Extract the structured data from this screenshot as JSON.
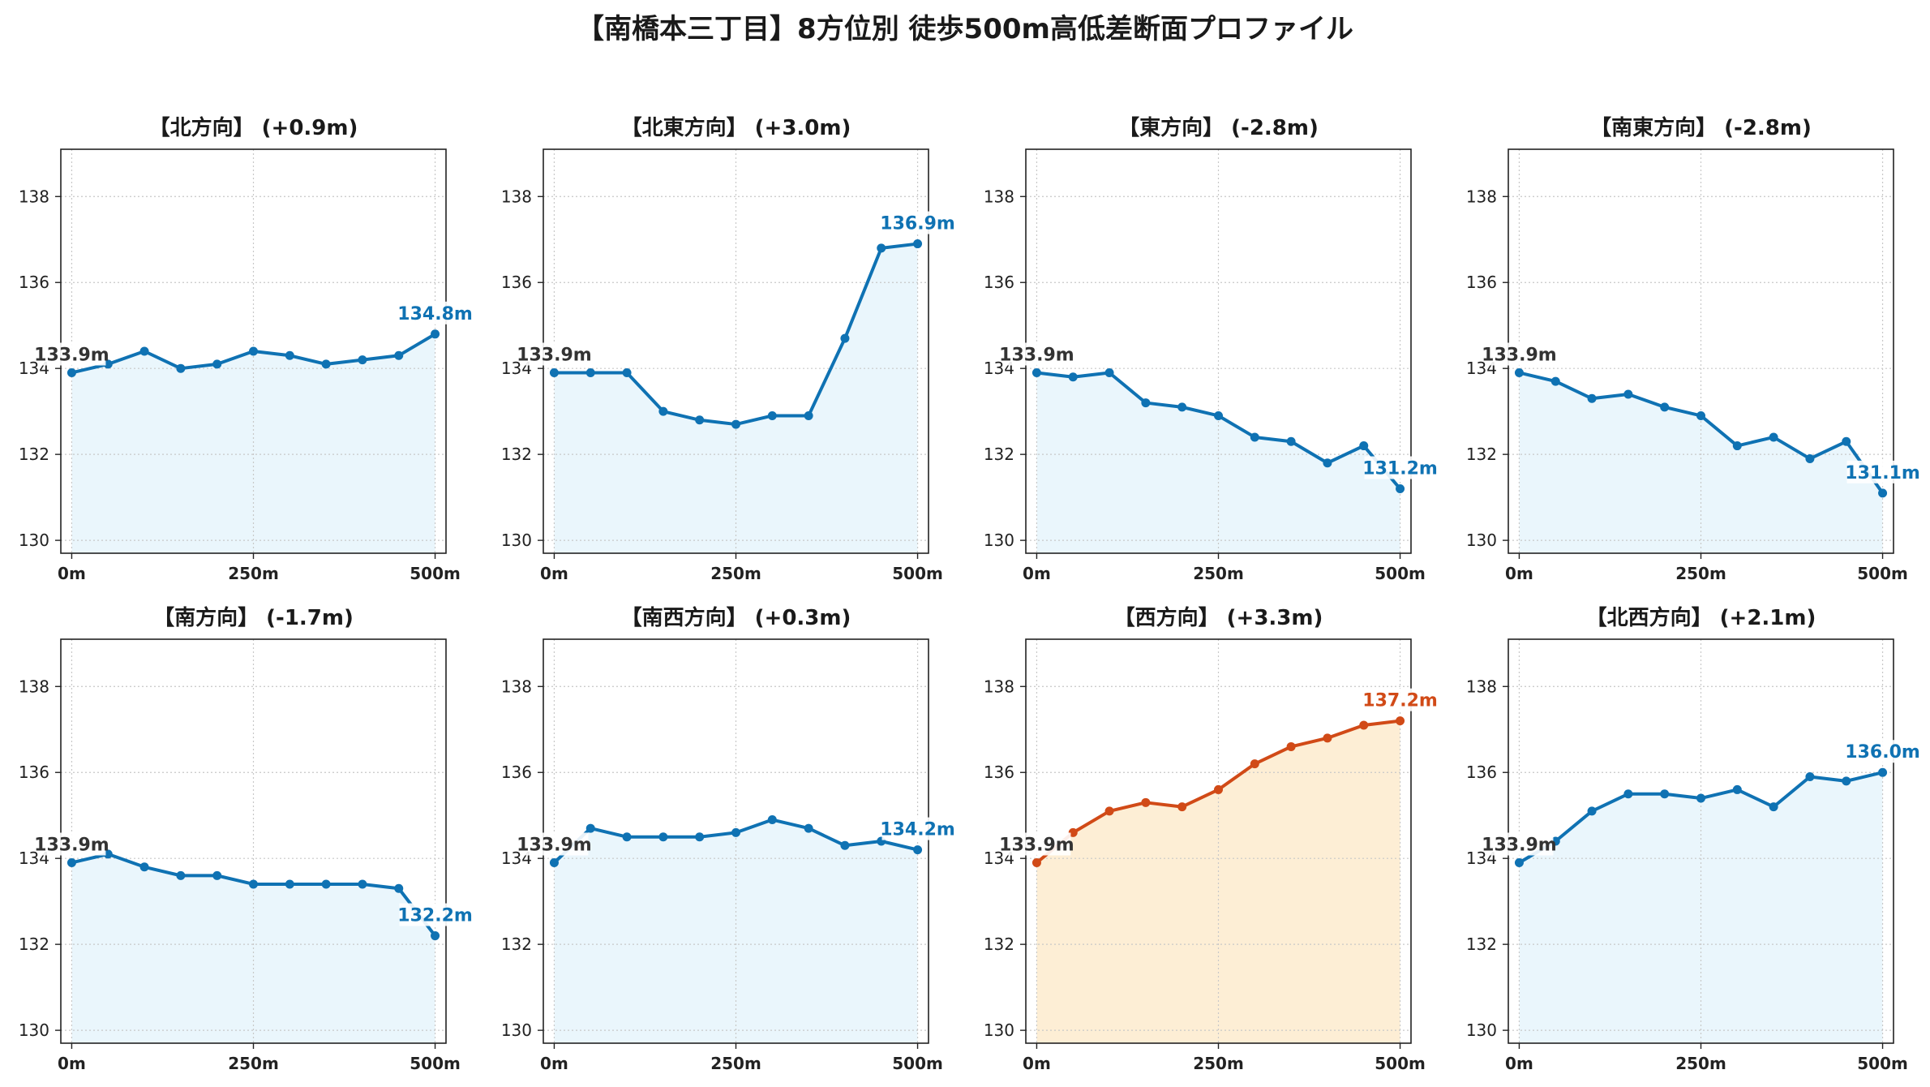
{
  "title": "【南橋本三丁目】8方位別 徒歩500m高低差断面プロファイル",
  "colors": {
    "blue_line": "#1f77b4",
    "blue_line_actual": "#0f72b3",
    "blue_fill": "#eaf6fc",
    "orange_line": "#d14a17",
    "orange_fill": "#fdeed5",
    "start_label": "#333333",
    "grid": "#c8c8c8"
  },
  "chart_data": [
    {
      "type": "line",
      "title": "【北方向】 (+0.9m)",
      "x": [
        0,
        50,
        100,
        150,
        200,
        250,
        300,
        350,
        400,
        450,
        500
      ],
      "values": [
        133.9,
        134.1,
        134.4,
        134.0,
        134.1,
        134.4,
        134.3,
        134.1,
        134.2,
        134.3,
        134.8
      ],
      "start_label": "133.9m",
      "end_label": "134.8m",
      "highlight": false,
      "ylim": [
        129.7,
        139.1
      ],
      "yticks": [
        130,
        132,
        134,
        136,
        138
      ],
      "xticks": [
        "0m",
        "250m",
        "500m"
      ],
      "grid": true
    },
    {
      "type": "line",
      "title": "【北東方向】 (+3.0m)",
      "x": [
        0,
        50,
        100,
        150,
        200,
        250,
        300,
        350,
        400,
        450,
        500
      ],
      "values": [
        133.9,
        133.9,
        133.9,
        133.0,
        132.8,
        132.7,
        132.9,
        132.9,
        134.7,
        136.8,
        136.9
      ],
      "start_label": "133.9m",
      "end_label": "136.9m",
      "highlight": false,
      "ylim": [
        129.7,
        139.1
      ],
      "yticks": [
        130,
        132,
        134,
        136,
        138
      ],
      "xticks": [
        "0m",
        "250m",
        "500m"
      ],
      "grid": true
    },
    {
      "type": "line",
      "title": "【東方向】 (-2.8m)",
      "x": [
        0,
        50,
        100,
        150,
        200,
        250,
        300,
        350,
        400,
        450,
        500
      ],
      "values": [
        133.9,
        133.8,
        133.9,
        133.2,
        133.1,
        132.9,
        132.4,
        132.3,
        131.8,
        132.2,
        131.2
      ],
      "start_label": "133.9m",
      "end_label": "131.2m",
      "highlight": false,
      "ylim": [
        129.7,
        139.1
      ],
      "yticks": [
        130,
        132,
        134,
        136,
        138
      ],
      "xticks": [
        "0m",
        "250m",
        "500m"
      ],
      "grid": true
    },
    {
      "type": "line",
      "title": "【南東方向】 (-2.8m)",
      "x": [
        0,
        50,
        100,
        150,
        200,
        250,
        300,
        350,
        400,
        450,
        500
      ],
      "values": [
        133.9,
        133.7,
        133.3,
        133.4,
        133.1,
        132.9,
        132.2,
        132.4,
        131.9,
        132.3,
        131.1
      ],
      "start_label": "133.9m",
      "end_label": "131.1m",
      "highlight": false,
      "ylim": [
        129.7,
        139.1
      ],
      "yticks": [
        130,
        132,
        134,
        136,
        138
      ],
      "xticks": [
        "0m",
        "250m",
        "500m"
      ],
      "grid": true
    },
    {
      "type": "line",
      "title": "【南方向】 (-1.7m)",
      "x": [
        0,
        50,
        100,
        150,
        200,
        250,
        300,
        350,
        400,
        450,
        500
      ],
      "values": [
        133.9,
        134.1,
        133.8,
        133.6,
        133.6,
        133.4,
        133.4,
        133.4,
        133.4,
        133.3,
        132.2
      ],
      "start_label": "133.9m",
      "end_label": "132.2m",
      "highlight": false,
      "ylim": [
        129.7,
        139.1
      ],
      "yticks": [
        130,
        132,
        134,
        136,
        138
      ],
      "xticks": [
        "0m",
        "250m",
        "500m"
      ],
      "grid": true
    },
    {
      "type": "line",
      "title": "【南西方向】 (+0.3m)",
      "x": [
        0,
        50,
        100,
        150,
        200,
        250,
        300,
        350,
        400,
        450,
        500
      ],
      "values": [
        133.9,
        134.7,
        134.5,
        134.5,
        134.5,
        134.6,
        134.9,
        134.7,
        134.3,
        134.4,
        134.2
      ],
      "start_label": "133.9m",
      "end_label": "134.2m",
      "highlight": false,
      "ylim": [
        129.7,
        139.1
      ],
      "yticks": [
        130,
        132,
        134,
        136,
        138
      ],
      "xticks": [
        "0m",
        "250m",
        "500m"
      ],
      "grid": true
    },
    {
      "type": "line",
      "title": "【西方向】 (+3.3m)",
      "x": [
        0,
        50,
        100,
        150,
        200,
        250,
        300,
        350,
        400,
        450,
        500
      ],
      "values": [
        133.9,
        134.6,
        135.1,
        135.3,
        135.2,
        135.6,
        136.2,
        136.6,
        136.8,
        137.1,
        137.2
      ],
      "start_label": "133.9m",
      "end_label": "137.2m",
      "highlight": true,
      "ylim": [
        129.7,
        139.1
      ],
      "yticks": [
        130,
        132,
        134,
        136,
        138
      ],
      "xticks": [
        "0m",
        "250m",
        "500m"
      ],
      "grid": true
    },
    {
      "type": "line",
      "title": "【北西方向】 (+2.1m)",
      "x": [
        0,
        50,
        100,
        150,
        200,
        250,
        300,
        350,
        400,
        450,
        500
      ],
      "values": [
        133.9,
        134.4,
        135.1,
        135.5,
        135.5,
        135.4,
        135.6,
        135.2,
        135.9,
        135.8,
        136.0
      ],
      "start_label": "133.9m",
      "end_label": "136.0m",
      "highlight": false,
      "ylim": [
        129.7,
        139.1
      ],
      "yticks": [
        130,
        132,
        134,
        136,
        138
      ],
      "xticks": [
        "0m",
        "250m",
        "500m"
      ],
      "grid": true
    }
  ]
}
